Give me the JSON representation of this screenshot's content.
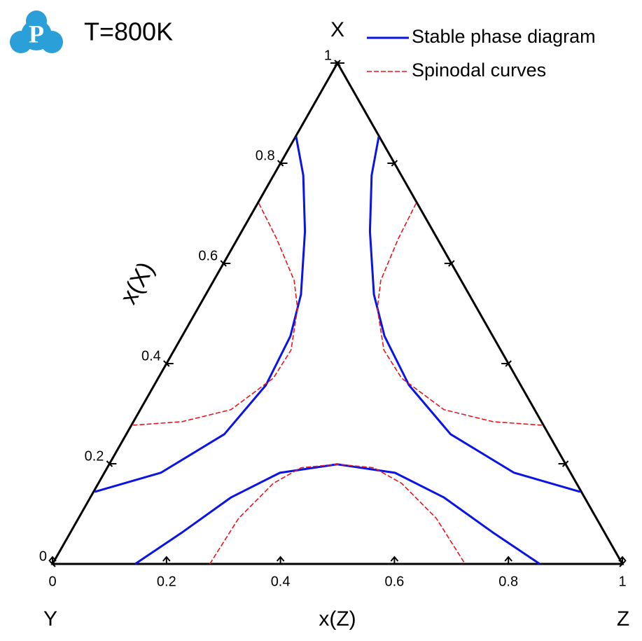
{
  "chart_data": {
    "type": "ternary",
    "title": "T=800K",
    "logo": "P",
    "vertex_labels": {
      "top": "X",
      "left": "Y",
      "right": "Z"
    },
    "xlabel": "x(Z)",
    "ylabel": "x(X)",
    "xlim": [
      0,
      1
    ],
    "ylim": [
      0,
      1
    ],
    "xticks": [
      0,
      0.2,
      0.4,
      0.6,
      0.8,
      1
    ],
    "yticks": [
      0,
      0.2,
      0.4,
      0.6,
      0.8,
      1
    ],
    "series": [
      {
        "name": "Stable phase diagram",
        "color": "#0a14e6",
        "dash": false,
        "curves": [
          {
            "x": [
              0.001,
              0.052,
              0.111,
              0.167,
              0.19,
              0.196,
              0.172,
              0.099,
              0.002
            ],
            "values": [
              0.853,
              0.776,
              0.664,
              0.538,
              0.455,
              0.357,
              0.259,
              0.182,
              0.144
            ]
          },
          {
            "x": [
              0.146,
              0.172,
              0.225,
              0.295,
              0.355,
              0.447,
              0.569,
              0.719,
              0.854
            ],
            "values": [
              0.853,
              0.776,
              0.664,
              0.538,
              0.455,
              0.357,
              0.259,
              0.182,
              0.144
            ]
          },
          {
            "x": [
              0.145,
              0.196,
              0.247,
              0.308,
              0.4,
              0.51,
              0.62,
              0.741,
              0.855
            ],
            "values": [
              0,
              0.063,
              0.133,
              0.182,
              0.199,
              0.182,
              0.133,
              0.063,
              0
            ]
          }
        ]
      },
      {
        "name": "Spinodal curves",
        "color": "#e8141e",
        "dash": true,
        "curves": [
          {
            "x": [
              0.002,
              0.068,
              0.141,
              0.175,
              0.205,
              0.202,
              0.159,
              0.085,
              0.003
            ],
            "values": [
              0.72,
              0.65,
              0.566,
              0.51,
              0.427,
              0.371,
              0.308,
              0.284,
              0.277
            ]
          },
          {
            "x": [
              0.278,
              0.282,
              0.293,
              0.315,
              0.368,
              0.427,
              0.533,
              0.631,
              0.72
            ],
            "values": [
              0.72,
              0.65,
              0.566,
              0.51,
              0.427,
              0.371,
              0.308,
              0.284,
              0.277
            ]
          },
          {
            "x": [
              0.276,
              0.281,
              0.307,
              0.34,
              0.4,
              0.468,
              0.532,
              0.628,
              0.724
            ],
            "values": [
              0,
              0.091,
              0.161,
              0.192,
              0.199,
              0.192,
              0.161,
              0.091,
              0
            ]
          }
        ]
      }
    ]
  }
}
